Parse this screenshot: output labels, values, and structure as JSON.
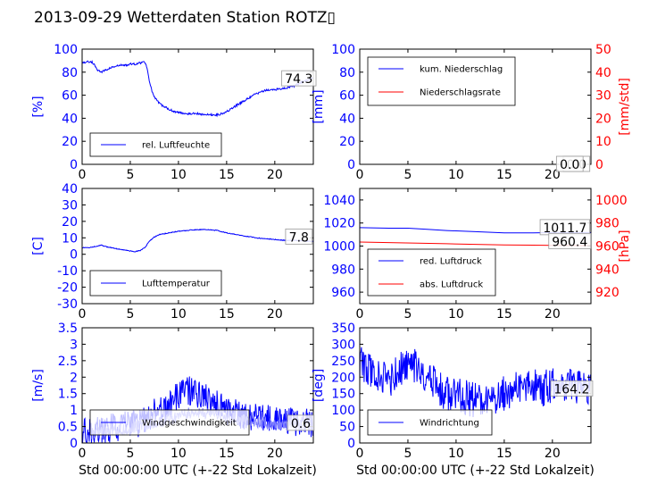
{
  "page": {
    "title": "2013-09-29 Wetterdaten Station ROTZ▯"
  },
  "colors": {
    "blue": "#0000ff",
    "red": "#ff0000",
    "light_blue": "#7f7fff",
    "black": "#000000"
  },
  "chart_data": [
    {
      "id": "humidity",
      "type": "line",
      "xlim": [
        0,
        24
      ],
      "ylim": [
        0,
        100
      ],
      "ylabel": "[%]",
      "xticks": [
        0,
        5,
        10,
        15,
        20
      ],
      "yticks": [
        0,
        20,
        40,
        60,
        80,
        100
      ],
      "legend": {
        "placement": "lower-left",
        "entries": [
          "rel. Luftfeuchte"
        ]
      },
      "annotations": [
        {
          "text": "74.3",
          "x": 22.5,
          "y": 74.3
        }
      ],
      "series": [
        {
          "name": "rel. Luftfeuchte",
          "color": "#0000ff",
          "noise": 0.9,
          "x": [
            0,
            0.5,
            1,
            1.3,
            1.6,
            2,
            2.5,
            3,
            3.5,
            4,
            4.5,
            5,
            5.5,
            6,
            6.5,
            6.7,
            7,
            7.3,
            7.6,
            8,
            8.5,
            9,
            9.5,
            10,
            11,
            12,
            13,
            14,
            14.5,
            15,
            15.5,
            16,
            17,
            18,
            19,
            20,
            21,
            22,
            23,
            24
          ],
          "y": [
            88,
            89,
            89,
            86,
            82,
            80,
            82,
            84,
            85,
            86,
            86,
            87,
            87,
            88,
            89,
            85,
            72,
            62,
            57,
            53,
            50,
            48,
            46,
            45,
            44,
            44,
            43,
            43,
            44,
            46,
            48,
            51,
            56,
            61,
            64,
            65,
            66,
            68,
            72,
            75
          ]
        }
      ]
    },
    {
      "id": "precipitation",
      "type": "line",
      "xlim": [
        0,
        24
      ],
      "ylim": [
        0,
        100
      ],
      "ylabel": "[mm]",
      "y2lim": [
        0,
        50
      ],
      "y2label": "[mm/std]",
      "xticks": [
        0,
        5,
        10,
        15,
        20
      ],
      "yticks": [
        0,
        20,
        40,
        60,
        80,
        100
      ],
      "y2ticks": [
        0,
        10,
        20,
        30,
        40,
        50
      ],
      "legend": {
        "placement": "upper-left",
        "entries": [
          "kum. Niederschlag",
          "Niederschlagsrate"
        ]
      },
      "annotations": [
        {
          "text": "0.0",
          "x": 22.5,
          "y": 0
        },
        {
          "text": "0.0",
          "x": 21.8,
          "y": 0
        }
      ],
      "series": [
        {
          "name": "kum. Niederschlag",
          "color": "#0000ff",
          "noise": 0,
          "x": [
            0,
            24
          ],
          "y": [
            0,
            0
          ]
        },
        {
          "name": "Niederschlagsrate",
          "color": "#ff0000",
          "noise": 0,
          "axis": "y2",
          "x": [
            0,
            24
          ],
          "y": [
            0,
            0
          ]
        }
      ]
    },
    {
      "id": "temperature",
      "type": "line",
      "xlim": [
        0,
        24
      ],
      "ylim": [
        -30,
        40
      ],
      "ylabel": "[C]",
      "xticks": [
        0,
        5,
        10,
        15,
        20
      ],
      "yticks": [
        -30,
        -20,
        -10,
        0,
        10,
        20,
        30,
        40
      ],
      "legend": {
        "placement": "lower-left",
        "entries": [
          "Lufttemperatur"
        ]
      },
      "annotations": [
        {
          "text": "7.8",
          "x": 22.5,
          "y": 10.5
        }
      ],
      "series": [
        {
          "name": "Lufttemperatur",
          "color": "#0000ff",
          "noise": 0.25,
          "x": [
            0,
            1,
            1.5,
            2,
            2.5,
            3,
            4,
            5,
            5.5,
            6,
            6.5,
            7,
            7.5,
            8,
            9,
            10,
            11,
            12,
            13,
            14,
            15,
            16,
            17,
            18,
            19,
            20,
            21,
            22,
            23,
            24
          ],
          "y": [
            4,
            4.2,
            5,
            5.5,
            4.6,
            4,
            3,
            2,
            1.6,
            2.2,
            4,
            8,
            10.5,
            12,
            13,
            14,
            14.5,
            15,
            15,
            14.5,
            13,
            12,
            11,
            10,
            9.5,
            9,
            8.5,
            8.5,
            8,
            7.8
          ]
        }
      ]
    },
    {
      "id": "pressure",
      "type": "line",
      "xlim": [
        0,
        24
      ],
      "ylim": [
        950,
        1050
      ],
      "ylabel": "",
      "y2lim": [
        910,
        1010
      ],
      "y2label": "[hPa]",
      "xticks": [
        0,
        5,
        10,
        15,
        20
      ],
      "yticks": [
        960,
        980,
        1000,
        1020,
        1040
      ],
      "y2ticks": [
        920,
        940,
        960,
        980,
        1000
      ],
      "legend": {
        "placement": "lower-left",
        "entries": [
          "red. Luftdruck",
          "abs. Luftdruck"
        ]
      },
      "annotations": [
        {
          "text": "1011.7",
          "x": 21.3,
          "y": 1016
        },
        {
          "text": "960.4",
          "x": 21.8,
          "y": 1004
        }
      ],
      "series": [
        {
          "name": "red. Luftdruck",
          "color": "#0000ff",
          "noise": 0,
          "x": [
            0,
            3,
            5,
            7,
            9,
            12,
            15,
            18,
            21,
            24
          ],
          "y": [
            1016,
            1015.5,
            1015.5,
            1014.5,
            1013.5,
            1012.5,
            1011.5,
            1011.5,
            1011.8,
            1011.7
          ]
        },
        {
          "name": "abs. Luftdruck",
          "color": "#ff0000",
          "noise": 0,
          "axis": "y2",
          "x": [
            0,
            3,
            6,
            9,
            12,
            15,
            18,
            21,
            24
          ],
          "y": [
            963.5,
            963,
            962.5,
            962,
            961.5,
            961,
            960.8,
            960.5,
            960.4
          ]
        }
      ]
    },
    {
      "id": "wind_speed",
      "type": "line",
      "xlim": [
        0,
        24
      ],
      "ylim": [
        0,
        3.5
      ],
      "ylabel": "[m/s]",
      "xlabel": "Std 00:00:00 UTC (+-22 Std Lokalzeit)",
      "xticks": [
        0,
        5,
        10,
        15,
        20
      ],
      "yticks": [
        0,
        0.5,
        1,
        1.5,
        2,
        2.5,
        3,
        3.5
      ],
      "legend": {
        "placement": "lower-left",
        "entries": [
          "Windgeschwindigkeit"
        ]
      },
      "annotations": [
        {
          "text": "0.6",
          "x": 22.7,
          "y": 0.6
        }
      ],
      "series": [
        {
          "name": "Windgeschwindigkeit",
          "color": "#0000ff",
          "noise": 0.45,
          "seed": 7,
          "x": [
            0,
            1,
            2,
            3,
            4,
            5,
            6,
            7,
            8,
            9,
            10,
            11,
            12,
            13,
            14,
            15,
            16,
            17,
            18,
            19,
            20,
            21,
            22,
            23,
            24
          ],
          "y": [
            0.3,
            0.3,
            0.4,
            0.45,
            0.5,
            0.55,
            0.6,
            0.8,
            1.0,
            1.2,
            1.5,
            1.6,
            1.5,
            1.35,
            1.2,
            1.0,
            0.9,
            0.85,
            0.8,
            0.75,
            0.7,
            0.7,
            0.65,
            0.6,
            0.6
          ]
        },
        {
          "color": "#7f7fff",
          "noise": 0.18,
          "seed": 13,
          "x": [
            1,
            3,
            5,
            7,
            9,
            11,
            13,
            15,
            17,
            19,
            21,
            23
          ],
          "y": [
            0.3,
            0.35,
            0.45,
            0.6,
            0.7,
            0.9,
            0.9,
            0.8,
            0.7,
            0.6,
            0.55,
            0.5
          ]
        }
      ]
    },
    {
      "id": "wind_direction",
      "type": "line",
      "xlim": [
        0,
        24
      ],
      "ylim": [
        0,
        350
      ],
      "ylabel": "[deg]",
      "xlabel": "Std 00:00:00 UTC (+-22 Std Lokalzeit)",
      "xticks": [
        0,
        5,
        10,
        15,
        20
      ],
      "yticks": [
        0,
        50,
        100,
        150,
        200,
        250,
        300,
        350
      ],
      "legend": {
        "placement": "lower-left",
        "entries": [
          "Windrichtung"
        ]
      },
      "annotations": [
        {
          "text": "164.2",
          "x": 22,
          "y": 164.2
        }
      ],
      "series": [
        {
          "name": "Windrichtung",
          "color": "#0000ff",
          "noise": 55,
          "seed": 3,
          "x": [
            0,
            1,
            2,
            3,
            4,
            5,
            6,
            7,
            8,
            9,
            10,
            11,
            12,
            13,
            14,
            15,
            16,
            17,
            18,
            19,
            20,
            21,
            22,
            23,
            24
          ],
          "y": [
            240,
            220,
            200,
            190,
            220,
            250,
            230,
            200,
            170,
            150,
            150,
            140,
            130,
            130,
            140,
            150,
            160,
            170,
            170,
            165,
            175,
            175,
            170,
            165,
            165
          ]
        }
      ]
    }
  ]
}
